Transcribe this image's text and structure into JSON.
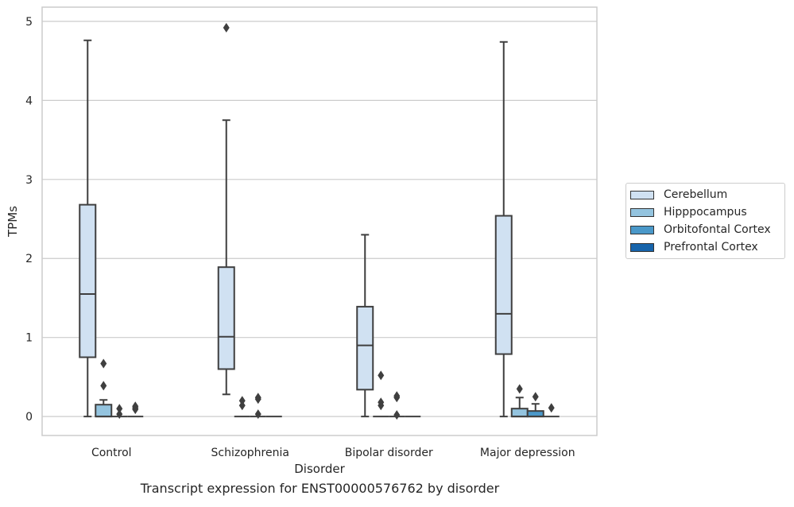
{
  "chart_data": {
    "type": "box",
    "xlabel": "Disorder",
    "ylabel": "TPMs",
    "caption": "Transcript expression for ENST00000576762 by disorder",
    "categories": [
      "Control",
      "Schizophrenia",
      "Bipolar disorder",
      "Major depression"
    ],
    "yticks": [
      "0",
      "1",
      "2",
      "3",
      "4",
      "5"
    ],
    "ylim": [
      -0.24,
      5.18
    ],
    "grid": true,
    "legend_position": "right",
    "series": [
      {
        "name": "Cerebellum",
        "color": "#d0e1f2",
        "boxes": [
          {
            "whisker_low": 0,
            "q1": 0.75,
            "median": 1.55,
            "q3": 2.68,
            "whisker_high": 4.76,
            "outliers": []
          },
          {
            "whisker_low": 0.28,
            "q1": 0.6,
            "median": 1.01,
            "q3": 1.89,
            "whisker_high": 3.75,
            "outliers": [
              4.92
            ]
          },
          {
            "whisker_low": 0,
            "q1": 0.34,
            "median": 0.9,
            "q3": 1.39,
            "whisker_high": 2.3,
            "outliers": []
          },
          {
            "whisker_low": 0,
            "q1": 0.79,
            "median": 1.3,
            "q3": 2.54,
            "whisker_high": 4.74,
            "outliers": []
          }
        ]
      },
      {
        "name": "Hipppocampus",
        "color": "#94c4df",
        "boxes": [
          {
            "whisker_low": 0,
            "q1": 0,
            "median": 0,
            "q3": 0.15,
            "whisker_high": 0.21,
            "outliers": [
              0.39,
              0.67
            ]
          },
          {
            "whisker_low": 0,
            "q1": 0,
            "median": 0,
            "q3": 0,
            "whisker_high": 0,
            "outliers": [
              0.14,
              0.2
            ]
          },
          {
            "whisker_low": 0,
            "q1": 0,
            "median": 0,
            "q3": 0,
            "whisker_high": 0,
            "outliers": [
              0.14,
              0.18,
              0.52
            ]
          },
          {
            "whisker_low": 0,
            "q1": 0,
            "median": 0,
            "q3": 0.1,
            "whisker_high": 0.24,
            "outliers": [
              0.35
            ]
          }
        ]
      },
      {
        "name": "Orbitofontal Cortex",
        "color": "#4a98c9",
        "boxes": [
          {
            "whisker_low": 0,
            "q1": 0,
            "median": 0,
            "q3": 0,
            "whisker_high": 0,
            "outliers": [
              0.03,
              0.1
            ]
          },
          {
            "whisker_low": 0,
            "q1": 0,
            "median": 0,
            "q3": 0,
            "whisker_high": 0,
            "outliers": [
              0.03,
              0.22,
              0.24
            ]
          },
          {
            "whisker_low": 0,
            "q1": 0,
            "median": 0,
            "q3": 0,
            "whisker_high": 0,
            "outliers": [
              0.02,
              0.24,
              0.26
            ]
          },
          {
            "whisker_low": 0,
            "q1": 0,
            "median": 0,
            "q3": 0.07,
            "whisker_high": 0.16,
            "outliers": [
              0.25
            ]
          }
        ]
      },
      {
        "name": "Prefrontal Cortex",
        "color": "#1764ab",
        "boxes": [
          {
            "whisker_low": 0,
            "q1": 0,
            "median": 0,
            "q3": 0,
            "whisker_high": 0,
            "outliers": [
              0.09,
              0.11,
              0.13
            ]
          },
          {
            "whisker_low": 0,
            "q1": 0,
            "median": 0,
            "q3": 0,
            "whisker_high": 0,
            "outliers": []
          },
          {
            "whisker_low": 0,
            "q1": 0,
            "median": 0,
            "q3": 0,
            "whisker_high": 0,
            "outliers": []
          },
          {
            "whisker_low": 0,
            "q1": 0,
            "median": 0,
            "q3": 0,
            "whisker_high": 0,
            "outliers": [
              0.11
            ]
          }
        ]
      }
    ]
  }
}
